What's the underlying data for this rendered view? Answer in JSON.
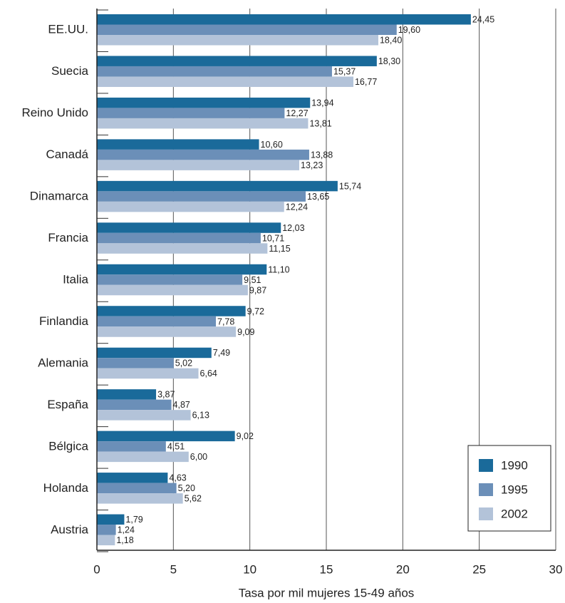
{
  "chart_data": {
    "type": "bar",
    "orientation": "horizontal",
    "xlabel": "Tasa por mil mujeres 15-49 años",
    "categories": [
      "EE.UU.",
      "Suecia",
      "Reino Unido",
      "Canadá",
      "Dinamarca",
      "Francia",
      "Italia",
      "Finlandia",
      "Alemania",
      "España",
      "Bélgica",
      "Holanda",
      "Austria"
    ],
    "series": [
      {
        "name": "1990",
        "color": "#1a6a9a",
        "values": [
          24.45,
          18.3,
          13.94,
          10.6,
          15.74,
          12.03,
          11.1,
          9.72,
          7.49,
          3.87,
          9.02,
          4.63,
          1.79
        ],
        "value_labels": [
          "24,45",
          "18,30",
          "13,94",
          "10,60",
          "15,74",
          "12,03",
          "11,10",
          "9,72",
          "7,49",
          "3,87",
          "9,02",
          "4,63",
          "1,79"
        ]
      },
      {
        "name": "1995",
        "color": "#6b8fb8",
        "values": [
          19.6,
          15.37,
          12.27,
          13.88,
          13.65,
          10.71,
          9.51,
          7.78,
          5.02,
          4.87,
          4.51,
          5.2,
          1.24
        ],
        "value_labels": [
          "19,60",
          "15,37",
          "12,27",
          "13,88",
          "13,65",
          "10,71",
          "9,51",
          "7,78",
          "5,02",
          "4,87",
          "4,51",
          "5,20",
          "1,24"
        ]
      },
      {
        "name": "2002",
        "color": "#b3c3d9",
        "values": [
          18.4,
          16.77,
          13.81,
          13.23,
          12.24,
          11.15,
          9.87,
          9.09,
          6.64,
          6.13,
          6.0,
          5.62,
          1.18
        ],
        "value_labels": [
          "18,40",
          "16,77",
          "13,81",
          "13,23",
          "12,24",
          "11,15",
          "9,87",
          "9,09",
          "6,64",
          "6,13",
          "6,00",
          "5,62",
          "1,18"
        ]
      }
    ],
    "xlim": [
      0,
      30
    ],
    "xticks": [
      0,
      5,
      10,
      15,
      20,
      25,
      30
    ],
    "grid": true,
    "legend": "lower right"
  }
}
